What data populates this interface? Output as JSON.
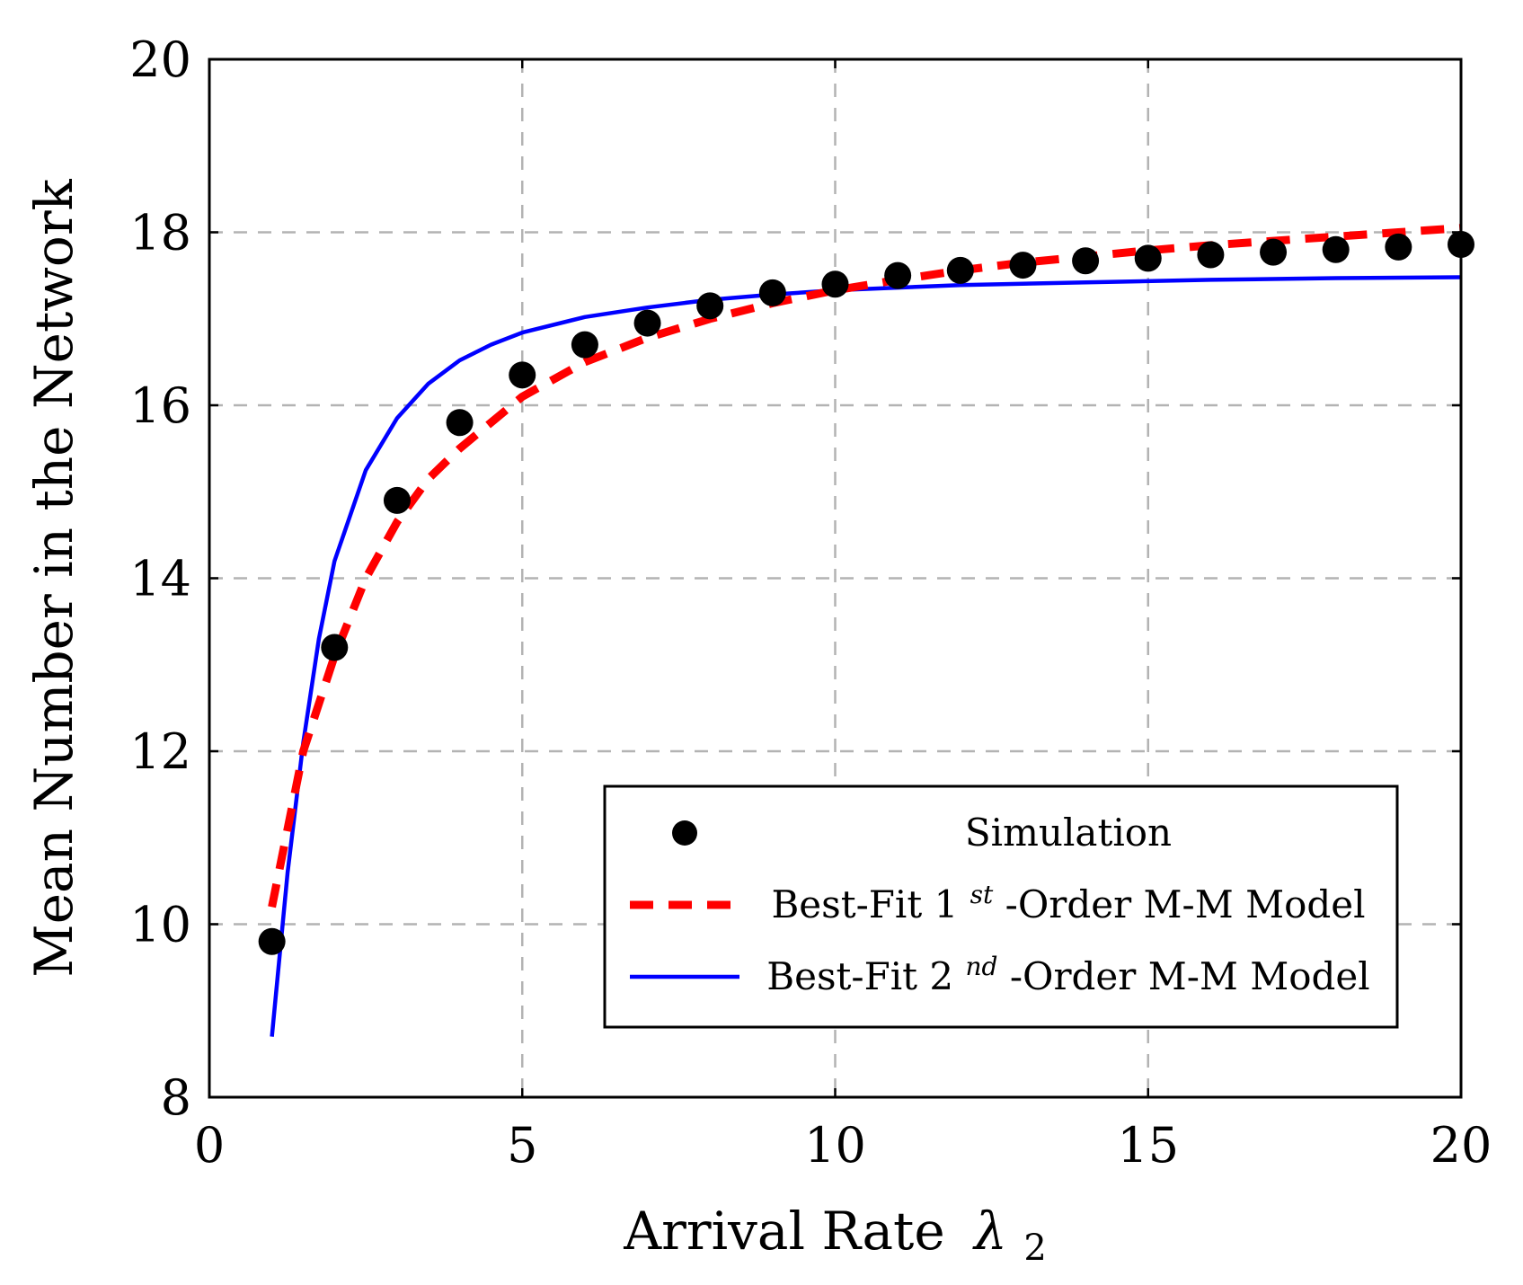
{
  "chart_data": {
    "type": "line",
    "title": "",
    "xlabel": "Arrival Rate",
    "xlabel_symbol": "λ",
    "xlabel_subscript": "2",
    "ylabel": "Mean Number in the Network",
    "xlim": [
      0,
      20
    ],
    "ylim": [
      8,
      20
    ],
    "xticks": [
      0,
      5,
      10,
      15,
      20
    ],
    "yticks": [
      8,
      10,
      12,
      14,
      16,
      18,
      20
    ],
    "grid": true,
    "legend_position": "bottom-right",
    "series": [
      {
        "name": "Simulation",
        "style": "markers",
        "color": "#000000",
        "x": [
          1,
          2,
          3,
          4,
          5,
          6,
          7,
          8,
          9,
          10,
          11,
          12,
          13,
          14,
          15,
          16,
          17,
          18,
          19,
          20
        ],
        "y": [
          9.8,
          13.2,
          14.9,
          15.8,
          16.35,
          16.7,
          16.95,
          17.15,
          17.3,
          17.4,
          17.5,
          17.56,
          17.62,
          17.67,
          17.7,
          17.74,
          17.77,
          17.8,
          17.83,
          17.86
        ]
      },
      {
        "name": "Best-Fit 1st-Order M-M Model",
        "label_prefix": "Best-Fit 1",
        "label_sup": "st",
        "label_suffix": "-Order M-M Model",
        "style": "dashed",
        "color": "#ff0000",
        "x": [
          1,
          1.5,
          2,
          2.5,
          3,
          3.5,
          4,
          5,
          6,
          7,
          8,
          9,
          10,
          11,
          12,
          13,
          14,
          15,
          16,
          17,
          18,
          19,
          20
        ],
        "y": [
          10.2,
          12.0,
          13.1,
          14.0,
          14.65,
          15.15,
          15.5,
          16.1,
          16.5,
          16.78,
          17.0,
          17.18,
          17.33,
          17.45,
          17.56,
          17.65,
          17.72,
          17.79,
          17.85,
          17.9,
          17.95,
          18.0,
          18.05
        ]
      },
      {
        "name": "Best-Fit 2nd-Order M-M Model",
        "label_prefix": "Best-Fit 2",
        "label_sup": "nd",
        "label_suffix": "-Order M-M Model",
        "style": "solid",
        "color": "#0000ff",
        "x": [
          1,
          1.25,
          1.5,
          1.75,
          2,
          2.5,
          3,
          3.5,
          4,
          4.5,
          5,
          6,
          7,
          8,
          9,
          10,
          12,
          14,
          16,
          18,
          20
        ],
        "y": [
          8.7,
          10.6,
          12.1,
          13.3,
          14.2,
          15.25,
          15.85,
          16.25,
          16.52,
          16.7,
          16.84,
          17.02,
          17.13,
          17.22,
          17.28,
          17.33,
          17.39,
          17.42,
          17.45,
          17.47,
          17.48
        ]
      }
    ]
  }
}
